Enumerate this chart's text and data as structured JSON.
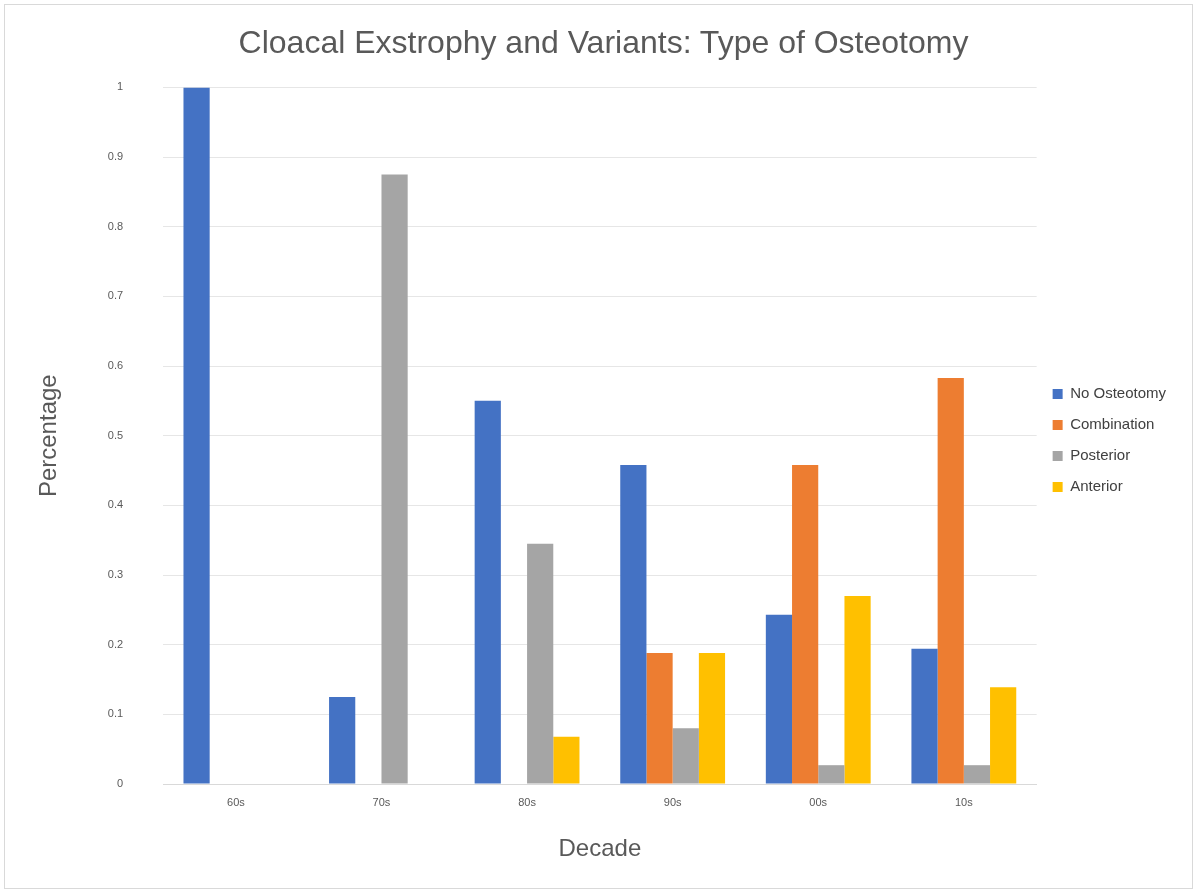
{
  "chart_data": {
    "type": "bar",
    "title": "Cloacal Exstrophy and Variants: Type of Osteotomy",
    "xlabel": "Decade",
    "ylabel": "Percentage",
    "categories": [
      "60s",
      "70s",
      "80s",
      "90s",
      "00s",
      "10s"
    ],
    "series": [
      {
        "name": "No Osteotomy",
        "color": "#4472c4",
        "values": [
          1,
          0.125,
          0.55,
          0.458,
          0.243,
          0.194
        ]
      },
      {
        "name": "Combination",
        "color": "#ed7d31",
        "values": [
          0,
          0,
          0,
          0.188,
          0.458,
          0.583
        ]
      },
      {
        "name": "Posterior",
        "color": "#a5a5a5",
        "values": [
          0,
          0.875,
          0.345,
          0.08,
          0.027,
          0.027
        ]
      },
      {
        "name": "Anterior",
        "color": "#ffc000",
        "values": [
          0,
          0,
          0.068,
          0.188,
          0.27,
          0.139
        ]
      }
    ],
    "ylim": [
      0,
      1
    ],
    "yticks": [
      0,
      0.1,
      0.2,
      0.3,
      0.4,
      0.5,
      0.6,
      0.7,
      0.8,
      0.9,
      1
    ],
    "grid": "y",
    "legend": "right"
  }
}
